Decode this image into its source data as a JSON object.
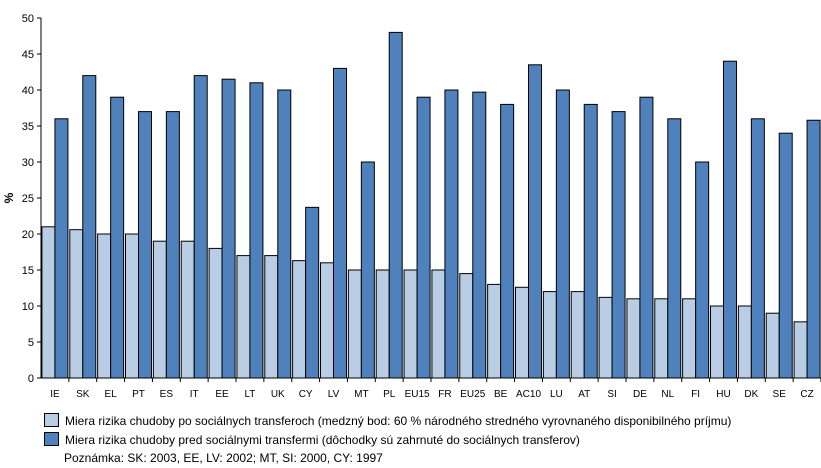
{
  "colors": {
    "after": "#b9cde5",
    "before": "#4f81bd",
    "axis": "#000000"
  },
  "chart_data": {
    "type": "bar",
    "ylabel": "%",
    "ylim": [
      0,
      50
    ],
    "yticks": [
      0,
      5,
      10,
      15,
      20,
      25,
      30,
      35,
      40,
      45,
      50
    ],
    "grid": false,
    "categories": [
      "IE",
      "SK",
      "EL",
      "PT",
      "ES",
      "IT",
      "EE",
      "LT",
      "UK",
      "CY",
      "LV",
      "MT",
      "PL",
      "EU15",
      "FR",
      "EU25",
      "BE",
      "AC10",
      "LU",
      "AT",
      "SI",
      "DE",
      "NL",
      "FI",
      "HU",
      "DK",
      "SE",
      "CZ"
    ],
    "series": [
      {
        "name": "Miera rizika chudoby po sociálnych transferoch (medzný bod: 60 % národného stredného vyrovnaného disponibilného príjmu)",
        "values": [
          21,
          20.6,
          20,
          20,
          19,
          19,
          18,
          17,
          17,
          16.3,
          16,
          15,
          15,
          15,
          15,
          14.5,
          13,
          12.6,
          12,
          12,
          11.2,
          11,
          11,
          11,
          10,
          10,
          9,
          7.8
        ]
      },
      {
        "name": "Miera rizika chudoby pred sociálnymi transfermi (dôchodky sú zahrnuté do sociálnych transferov)",
        "values": [
          36,
          42,
          39,
          37,
          37,
          42,
          41.5,
          41,
          40,
          23.7,
          43,
          30,
          48,
          39,
          40,
          39.7,
          38,
          43.5,
          40,
          38,
          37,
          39,
          36,
          30,
          44,
          36,
          34,
          35.8
        ]
      }
    ]
  },
  "legend": {
    "after_label": "Miera rizika chudoby po sociálnych transferoch (medzný bod: 60 % národného stredného vyrovnaného disponibilného príjmu)",
    "before_label": "Miera rizika chudoby pred sociálnymi transfermi (dôchodky sú zahrnuté do sociálnych transferov)"
  },
  "note": "Poznámka: SK: 2003, EE, LV: 2002; MT, SI: 2000, CY: 1997"
}
